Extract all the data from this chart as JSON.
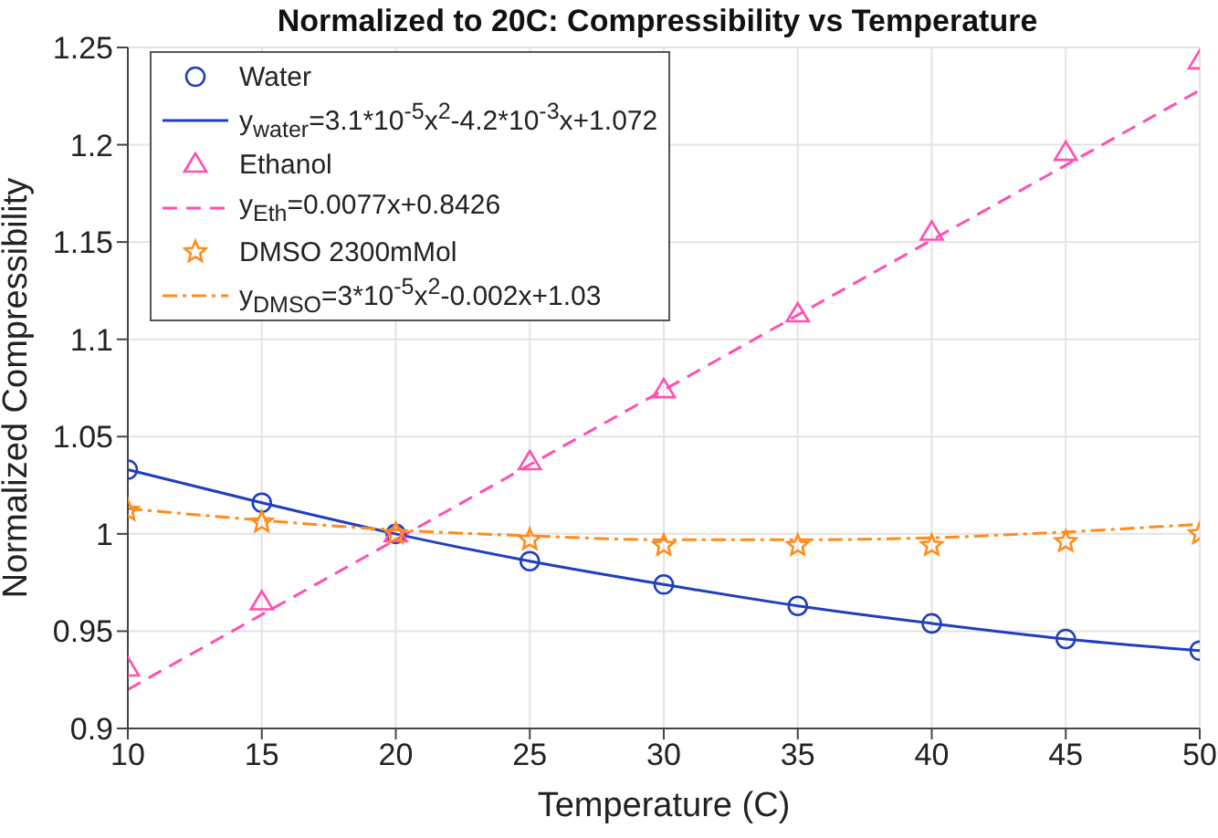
{
  "chart_data": {
    "type": "scatter",
    "title": "Normalized to 20C: Compressibility vs Temperature",
    "xlabel": "Temperature (C)",
    "ylabel": "Normalized Compressibility",
    "xlim": [
      10,
      50
    ],
    "xticks": [
      10,
      15,
      20,
      25,
      30,
      35,
      40,
      45,
      50
    ],
    "ylim": [
      0.9,
      1.25
    ],
    "yticks": [
      0.9,
      0.95,
      1,
      1.05,
      1.1,
      1.15,
      1.2,
      1.25
    ],
    "grid": true,
    "legend": "top left",
    "series": [
      {
        "name": "Water",
        "marker": "circle",
        "color": "#1f3fbf",
        "x": [
          10,
          15,
          20,
          25,
          30,
          35,
          40,
          45,
          50
        ],
        "values": [
          1.033,
          1.016,
          1.0,
          0.986,
          0.974,
          0.963,
          0.954,
          0.946,
          0.94
        ]
      },
      {
        "name": "y$_{water}$=3.1*10$^{-5}$x$^{2}$-4.2*10$^{-3}$x+1.072",
        "type": "line",
        "marker": "none",
        "line_style": "solid",
        "color": "#1f3fbf",
        "x": [
          10,
          15,
          20,
          25,
          30,
          35,
          40,
          45,
          50
        ],
        "values": [
          1.033,
          1.016,
          1.0,
          0.986,
          0.974,
          0.963,
          0.954,
          0.946,
          0.94
        ]
      },
      {
        "name": "Ethanol",
        "marker": "triangle",
        "color": "#ff4fb0",
        "x": [
          10,
          15,
          20,
          25,
          30,
          35,
          40,
          45,
          50
        ],
        "values": [
          0.931,
          0.965,
          1.0,
          1.037,
          1.074,
          1.113,
          1.155,
          1.196,
          1.243
        ]
      },
      {
        "name": "y$_{Eth}$=0.0077x+0.8426",
        "type": "line",
        "marker": "none",
        "line_style": "dashed",
        "color": "#ff4fb0",
        "x": [
          10,
          50
        ],
        "values": [
          0.92,
          1.228
        ]
      },
      {
        "name": "DMSO 2300mMol",
        "marker": "star",
        "color": "#ff8c1a",
        "x": [
          10,
          15,
          20,
          25,
          30,
          35,
          40,
          45,
          50
        ],
        "values": [
          1.012,
          1.006,
          1.0,
          0.997,
          0.994,
          0.994,
          0.994,
          0.996,
          1.0
        ]
      },
      {
        "name": "y$_{DMSO}$=3*10$^{-5}$x$^{2}$-0.002x+1.03",
        "type": "line",
        "marker": "none",
        "line_style": "dashdot",
        "color": "#ff8c1a",
        "x": [
          10,
          15,
          20,
          25,
          30,
          35,
          40,
          45,
          50
        ],
        "values": [
          1.013,
          1.007,
          1.002,
          0.999,
          0.997,
          0.997,
          0.998,
          1.001,
          1.005
        ]
      }
    ]
  }
}
